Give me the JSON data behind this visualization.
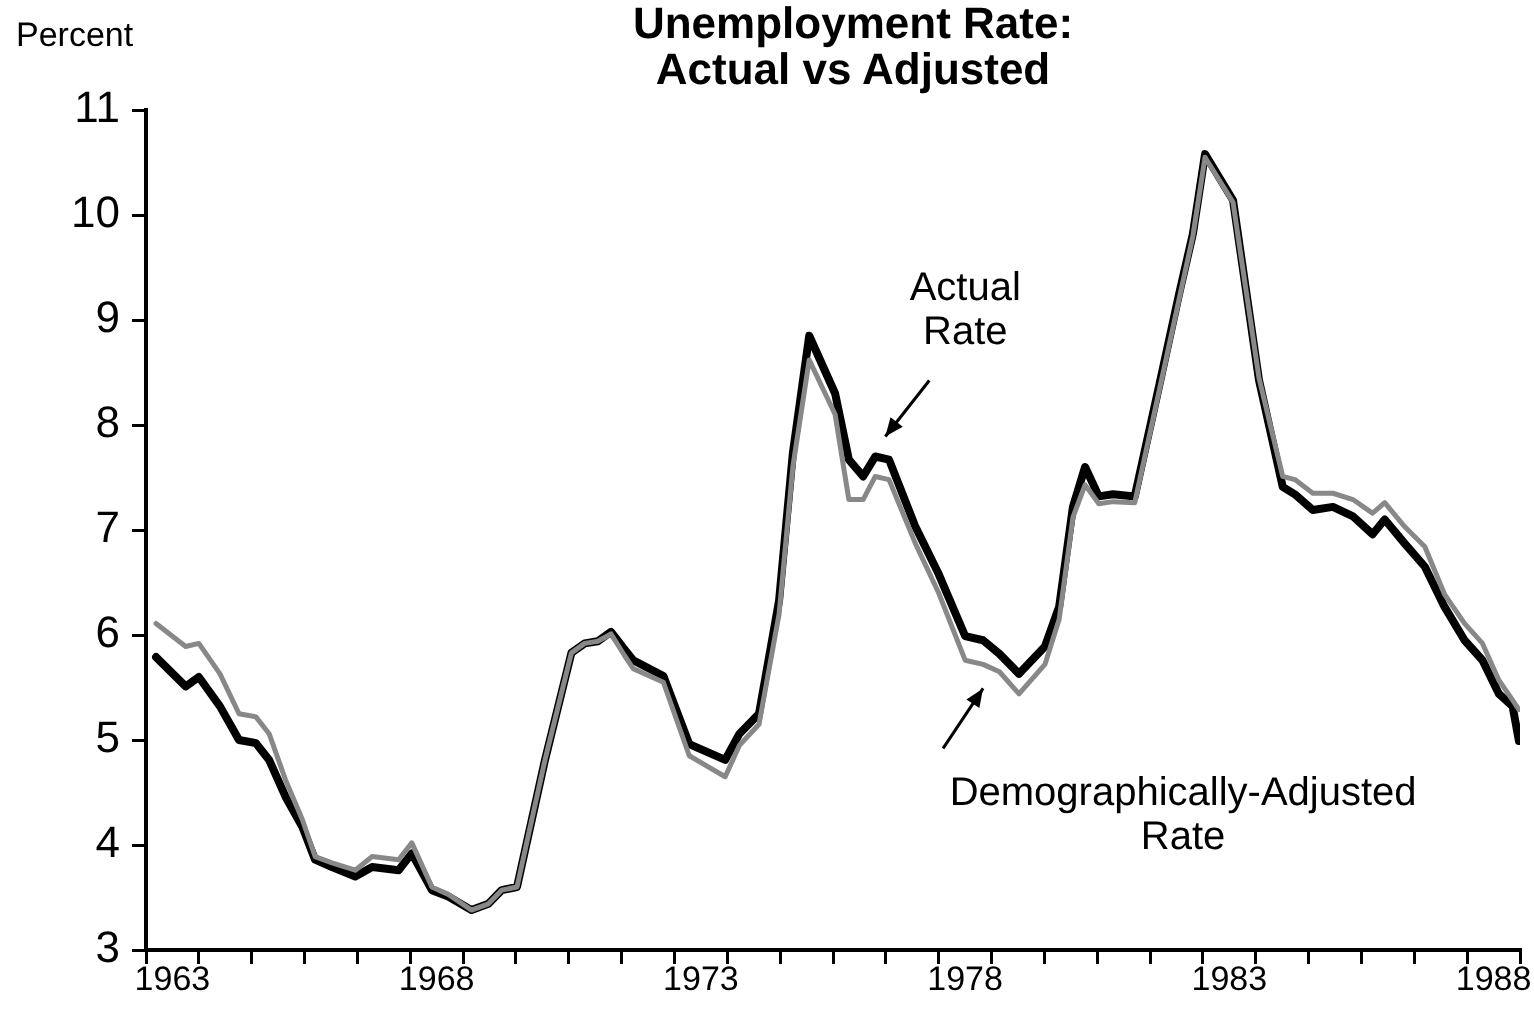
{
  "chart_data": {
    "type": "line",
    "title": "Unemployment Rate:\nActual vs Adjusted",
    "ylabel": "Percent",
    "annotations": [
      {
        "text": "Actual\nRate",
        "x": 1976.8,
        "y": 7.7
      },
      {
        "text": "Demographically-Adjusted\nRate",
        "x": 1978.84,
        "y": 5.72
      }
    ],
    "xlim": [
      1963,
      1989
    ],
    "ylim": [
      3,
      11
    ],
    "yticks": [
      3,
      4,
      5,
      6,
      7,
      8,
      9,
      10,
      11
    ],
    "xticks": [
      {
        "value": 1963,
        "label": null
      },
      {
        "value": 1963.5,
        "label": "1963"
      },
      {
        "value": 1964,
        "label": null
      },
      {
        "value": 1965,
        "label": null
      },
      {
        "value": 1966,
        "label": null
      },
      {
        "value": 1967,
        "label": null
      },
      {
        "value": 1968,
        "label": null
      },
      {
        "value": 1968.5,
        "label": "1968"
      },
      {
        "value": 1969,
        "label": null
      },
      {
        "value": 1970,
        "label": null
      },
      {
        "value": 1971,
        "label": null
      },
      {
        "value": 1972,
        "label": null
      },
      {
        "value": 1973,
        "label": null
      },
      {
        "value": 1973.5,
        "label": "1973"
      },
      {
        "value": 1974,
        "label": null
      },
      {
        "value": 1975,
        "label": null
      },
      {
        "value": 1976,
        "label": null
      },
      {
        "value": 1977,
        "label": null
      },
      {
        "value": 1978,
        "label": null
      },
      {
        "value": 1978.5,
        "label": "1978"
      },
      {
        "value": 1979,
        "label": null
      },
      {
        "value": 1980,
        "label": null
      },
      {
        "value": 1981,
        "label": null
      },
      {
        "value": 1982,
        "label": null
      },
      {
        "value": 1983,
        "label": null
      },
      {
        "value": 1983.5,
        "label": "1983"
      },
      {
        "value": 1984,
        "label": null
      },
      {
        "value": 1985,
        "label": null
      },
      {
        "value": 1986,
        "label": null
      },
      {
        "value": 1987,
        "label": null
      },
      {
        "value": 1988,
        "label": null
      },
      {
        "value": 1988.5,
        "label": "1988"
      },
      {
        "value": 1989,
        "label": null
      }
    ],
    "grid": false,
    "legend": false,
    "marker": "none",
    "line_style": "solid",
    "series": [
      {
        "color": "#888888",
        "x": [
          1963.19,
          1963.75,
          1964.0,
          1964.4,
          1964.76,
          1965.08,
          1965.33,
          1965.64,
          1965.96,
          1966.2,
          1966.52,
          1966.96,
          1967.28,
          1967.78,
          1968.03,
          1968.41,
          1968.72,
          1969.16,
          1969.48,
          1969.73,
          1970.02,
          1970.3,
          1970.55,
          1970.8,
          1971.05,
          1971.3,
          1971.55,
          1971.8,
          1972.06,
          1972.22,
          1972.79,
          1973.28,
          1973.96,
          1974.23,
          1974.6,
          1974.98,
          1975.24,
          1975.55,
          1976.04,
          1976.3,
          1976.57,
          1976.8,
          1977.06,
          1977.56,
          1978.0,
          1978.5,
          1978.84,
          1979.15,
          1979.52,
          1980.01,
          1980.28,
          1980.54,
          1980.77,
          1981.03,
          1981.3,
          1981.71,
          1982.17,
          1982.55,
          1982.81,
          1983.04,
          1983.57,
          1984.06,
          1984.51,
          1984.74,
          1985.08,
          1985.46,
          1985.84,
          1986.21,
          1986.44,
          1986.82,
          1987.2,
          1987.57,
          1987.95,
          1988.29,
          1988.6,
          1988.86,
          1988.98
        ],
        "values": [
          6.11,
          5.89,
          5.92,
          5.63,
          5.25,
          5.22,
          5.06,
          4.62,
          4.24,
          3.89,
          3.83,
          3.76,
          3.89,
          3.86,
          4.02,
          3.6,
          3.53,
          3.38,
          3.44,
          3.57,
          3.6,
          4.24,
          4.81,
          5.32,
          5.83,
          5.92,
          5.94,
          6.01,
          5.8,
          5.68,
          5.55,
          4.85,
          4.65,
          4.95,
          5.15,
          6.2,
          7.6,
          8.62,
          8.1,
          7.29,
          7.29,
          7.51,
          7.48,
          6.87,
          6.4,
          5.76,
          5.72,
          5.65,
          5.44,
          5.72,
          6.15,
          7.12,
          7.43,
          7.25,
          7.27,
          7.26,
          8.32,
          9.2,
          9.8,
          10.55,
          10.12,
          8.45,
          7.51,
          7.48,
          7.35,
          7.35,
          7.29,
          7.16,
          7.26,
          7.03,
          6.84,
          6.39,
          6.11,
          5.92,
          5.57,
          5.38,
          5.29
        ]
      },
      {
        "color": "#000000",
        "x": [
          1963.19,
          1963.75,
          1964.0,
          1964.4,
          1964.76,
          1965.08,
          1965.33,
          1965.64,
          1965.96,
          1966.2,
          1966.52,
          1966.96,
          1967.28,
          1967.78,
          1968.03,
          1968.41,
          1968.72,
          1969.16,
          1969.48,
          1969.73,
          1970.02,
          1970.3,
          1970.55,
          1970.8,
          1971.05,
          1971.3,
          1971.55,
          1971.8,
          1972.06,
          1972.22,
          1972.79,
          1973.28,
          1973.96,
          1974.23,
          1974.6,
          1974.98,
          1975.24,
          1975.55,
          1976.04,
          1976.3,
          1976.57,
          1976.8,
          1977.06,
          1977.56,
          1978.0,
          1978.5,
          1978.84,
          1979.15,
          1979.52,
          1980.01,
          1980.28,
          1980.54,
          1980.77,
          1981.03,
          1981.3,
          1981.71,
          1982.17,
          1982.55,
          1982.81,
          1983.04,
          1983.57,
          1984.06,
          1984.51,
          1984.74,
          1985.08,
          1985.46,
          1985.84,
          1986.21,
          1986.44,
          1986.82,
          1987.2,
          1987.57,
          1987.95,
          1988.29,
          1988.6,
          1988.86,
          1988.98
        ],
        "values": [
          5.79,
          5.51,
          5.6,
          5.32,
          5.0,
          4.97,
          4.81,
          4.46,
          4.17,
          3.86,
          3.79,
          3.7,
          3.79,
          3.76,
          3.92,
          3.57,
          3.51,
          3.38,
          3.44,
          3.57,
          3.6,
          4.24,
          4.81,
          5.32,
          5.83,
          5.92,
          5.94,
          6.03,
          5.86,
          5.76,
          5.61,
          4.96,
          4.81,
          5.06,
          5.25,
          6.33,
          7.73,
          8.85,
          8.3,
          7.67,
          7.51,
          7.7,
          7.67,
          7.03,
          6.58,
          5.99,
          5.95,
          5.82,
          5.63,
          5.89,
          6.27,
          7.22,
          7.6,
          7.32,
          7.34,
          7.32,
          8.37,
          9.25,
          9.82,
          10.58,
          10.14,
          8.43,
          7.41,
          7.34,
          7.19,
          7.22,
          7.13,
          6.96,
          7.1,
          6.87,
          6.65,
          6.27,
          5.95,
          5.76,
          5.44,
          5.32,
          4.99
        ]
      }
    ]
  }
}
